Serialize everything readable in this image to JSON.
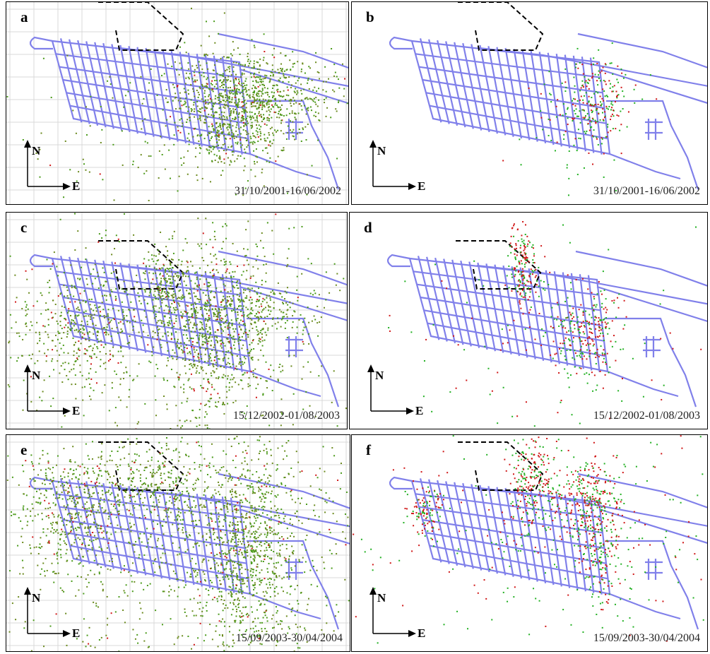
{
  "panels": [
    {
      "label": "a",
      "date": "31/10/2001-16/06/2002"
    },
    {
      "label": "b",
      "date": "31/10/2001-16/06/2002"
    },
    {
      "label": "c",
      "date": "15/12/2002-01/08/2003"
    },
    {
      "label": "d",
      "date": "15/12/2002-01/08/2003"
    },
    {
      "label": "e",
      "date": "15/09/2003-30/04/2004"
    },
    {
      "label": "f",
      "date": "15/09/2003-30/04/2004"
    }
  ],
  "compass": {
    "north": "N",
    "east": "E"
  }
}
